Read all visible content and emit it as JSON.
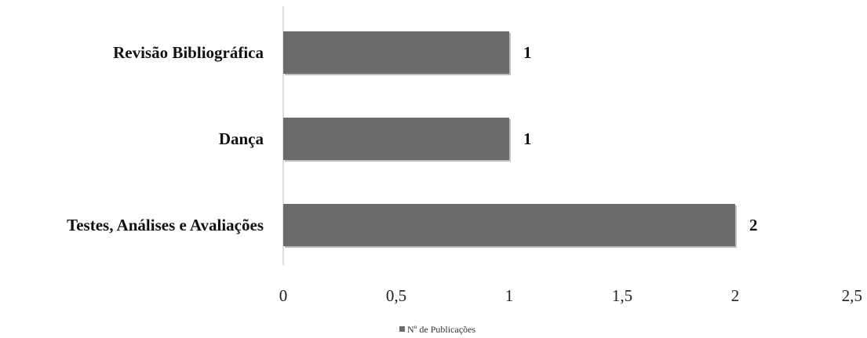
{
  "chart_data": {
    "type": "bar",
    "orientation": "horizontal",
    "categories": [
      "Revisão Bibliográfica",
      "Dança",
      "Testes, Análises e Avaliações"
    ],
    "series": [
      {
        "name": "Nº de Publicações",
        "values": [
          1,
          1,
          2
        ],
        "data_labels": [
          "1",
          "1",
          "2"
        ]
      }
    ],
    "xlim": [
      0,
      2.5
    ],
    "x_ticks": [
      "0",
      "0,5",
      "1",
      "1,5",
      "2",
      "2,5"
    ],
    "x_tick_values": [
      0,
      0.5,
      1,
      1.5,
      2,
      2.5
    ],
    "grid": false,
    "legend_position": "bottom",
    "colors": {
      "bar": "#6b6b6b",
      "bar_shadow": "#bdbdbd",
      "axis": "#d4d4d4"
    }
  }
}
